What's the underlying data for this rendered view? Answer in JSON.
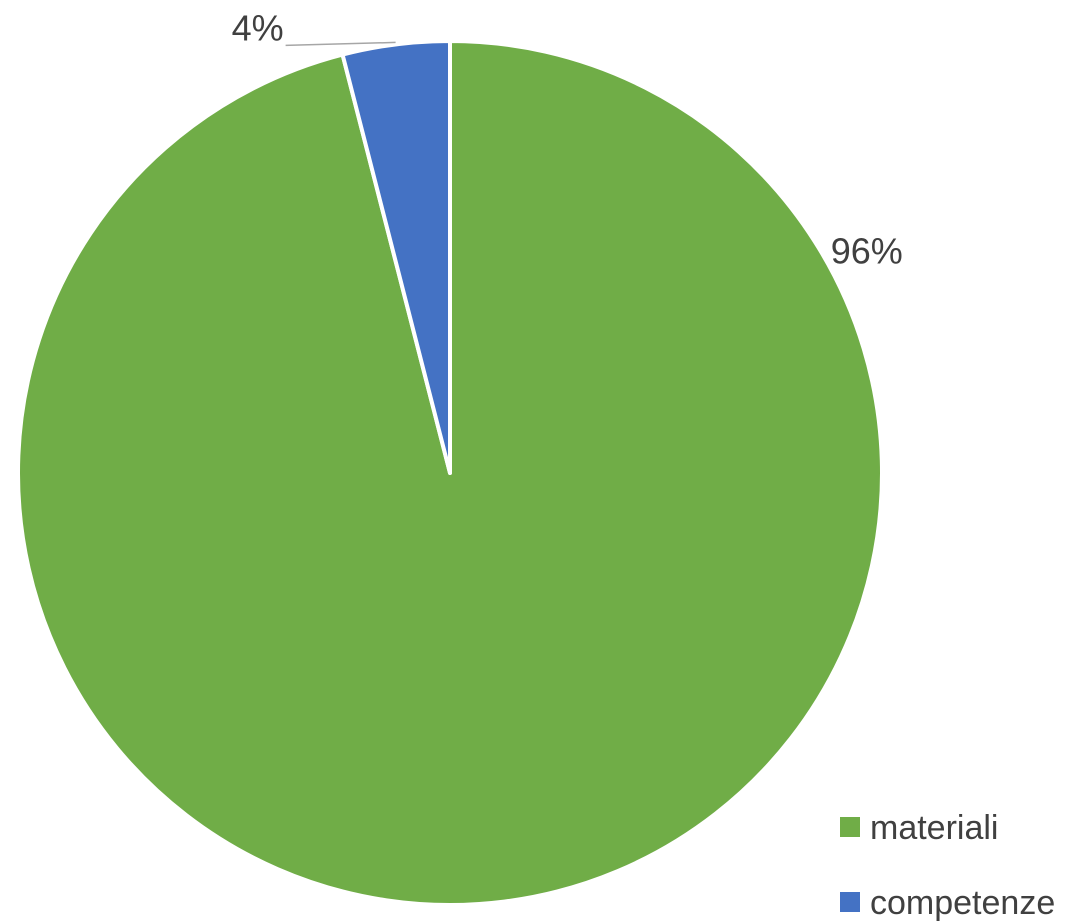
{
  "chart_data": {
    "type": "pie",
    "start_direction": "clockwise from top",
    "series": [
      {
        "name": "materiali",
        "value": 96,
        "label": "96%",
        "color": "#70AD47"
      },
      {
        "name": "competenze",
        "value": 4,
        "label": "4%",
        "color": "#4472C4"
      }
    ],
    "legend": {
      "position": "bottom-right"
    },
    "title": ""
  }
}
